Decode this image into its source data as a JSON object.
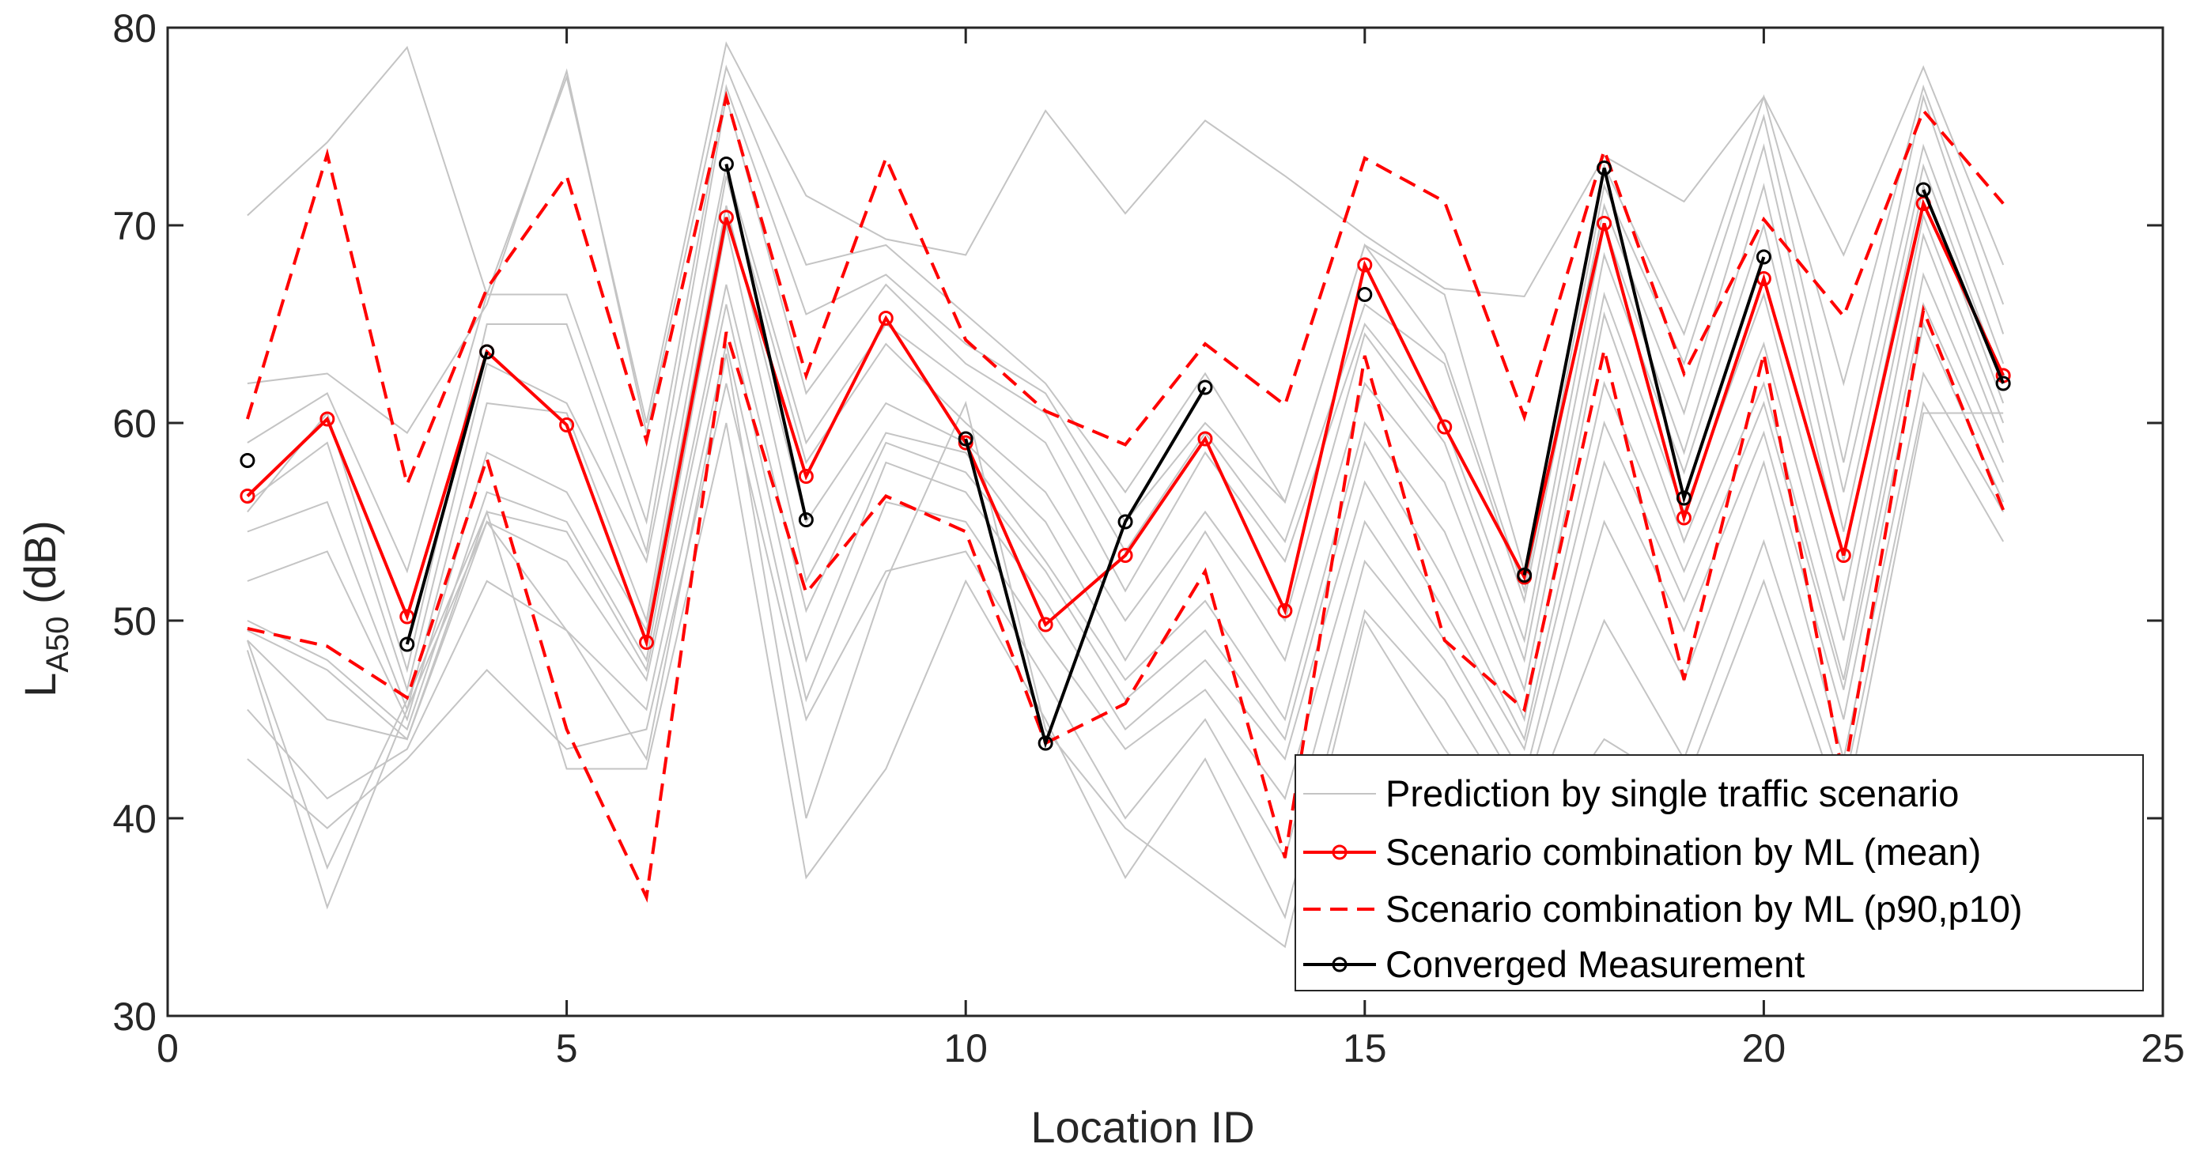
{
  "chart_data": {
    "type": "line",
    "xlabel": "Location ID",
    "ylabel_main": "L",
    "ylabel_sub": "A50",
    "ylabel_unit": " (dB)",
    "xlim": [
      0,
      25
    ],
    "ylim": [
      30,
      80
    ],
    "xticks": [
      0,
      5,
      10,
      15,
      20,
      25
    ],
    "yticks": [
      30,
      40,
      50,
      60,
      70,
      80
    ],
    "grid": false,
    "legend_position": "bottom-right",
    "colors": {
      "gray": "#c4c4c4",
      "red": "#ff0000",
      "black": "#000000",
      "axis": "#262626"
    },
    "x": [
      1,
      2,
      3,
      4,
      5,
      6,
      7,
      8,
      9,
      10,
      11,
      12,
      13,
      14,
      15,
      16,
      17,
      18,
      19,
      20,
      21,
      22,
      23
    ],
    "gray_series": [
      [
        70.5,
        74.2,
        79.0,
        66.5,
        77.5,
        60.0,
        79.2,
        71.5,
        69.3,
        68.5,
        75.8,
        70.6,
        75.3,
        72.5,
        69.5,
        66.8,
        66.4,
        73.5,
        71.2,
        76.5,
        68.5,
        78.0,
        68.0
      ],
      [
        62.0,
        62.5,
        59.5,
        66.0,
        77.8,
        59.5,
        78.0,
        68.0,
        69.0,
        65.5,
        62.0,
        56.5,
        62.5,
        56.0,
        69.0,
        66.5,
        52.5,
        73.0,
        64.5,
        76.5,
        62.0,
        77.0,
        66.0
      ],
      [
        59.0,
        61.5,
        52.5,
        66.5,
        66.5,
        55.0,
        77.0,
        65.5,
        67.5,
        64.0,
        61.5,
        55.0,
        60.0,
        56.0,
        69.0,
        63.5,
        51.5,
        72.0,
        63.0,
        75.5,
        58.0,
        76.5,
        64.5
      ],
      [
        55.5,
        60.5,
        47.5,
        65.0,
        65.0,
        53.5,
        76.5,
        61.5,
        67.0,
        63.0,
        60.5,
        53.5,
        59.5,
        54.0,
        66.0,
        63.0,
        51.0,
        71.0,
        60.5,
        74.0,
        56.5,
        74.0,
        63.0
      ],
      [
        56.0,
        59.0,
        46.5,
        63.0,
        61.0,
        53.0,
        73.0,
        59.0,
        65.0,
        62.0,
        59.0,
        51.5,
        58.5,
        53.0,
        65.0,
        60.0,
        49.0,
        70.0,
        58.5,
        72.0,
        54.5,
        73.0,
        62.0
      ],
      [
        54.5,
        56.0,
        45.5,
        61.0,
        60.5,
        50.0,
        72.5,
        58.0,
        64.0,
        60.0,
        56.5,
        50.0,
        55.5,
        50.0,
        64.5,
        59.0,
        48.0,
        68.5,
        57.5,
        70.0,
        53.0,
        72.0,
        61.0
      ],
      [
        52.0,
        53.5,
        45.0,
        58.5,
        56.5,
        49.5,
        71.0,
        55.0,
        61.0,
        59.0,
        55.0,
        48.0,
        54.5,
        48.0,
        62.0,
        57.0,
        46.5,
        66.5,
        55.5,
        66.5,
        51.0,
        70.5,
        60.0
      ],
      [
        50.0,
        48.0,
        44.5,
        56.5,
        55.0,
        48.0,
        70.0,
        52.0,
        59.5,
        58.5,
        53.0,
        47.0,
        51.0,
        45.0,
        60.0,
        54.5,
        45.0,
        65.5,
        54.0,
        64.0,
        49.0,
        69.5,
        59.0
      ],
      [
        49.5,
        47.5,
        44.0,
        55.5,
        54.5,
        47.5,
        67.0,
        50.5,
        59.0,
        57.5,
        52.5,
        46.0,
        49.5,
        44.0,
        59.0,
        52.0,
        44.0,
        62.0,
        52.5,
        62.0,
        47.0,
        67.5,
        58.0
      ],
      [
        49.0,
        45.0,
        44.0,
        55.0,
        53.0,
        47.0,
        66.0,
        48.0,
        58.0,
        56.5,
        51.0,
        44.5,
        48.0,
        43.0,
        57.0,
        50.5,
        43.5,
        60.0,
        51.0,
        61.0,
        46.5,
        66.0,
        57.0
      ],
      [
        45.5,
        41.0,
        43.5,
        52.0,
        49.5,
        45.5,
        64.0,
        46.0,
        56.0,
        55.0,
        49.0,
        43.5,
        46.5,
        41.0,
        55.0,
        49.0,
        42.0,
        58.0,
        49.5,
        59.5,
        45.0,
        65.0,
        56.0
      ],
      [
        43.0,
        39.5,
        43.0,
        47.5,
        43.5,
        44.5,
        62.0,
        45.0,
        52.5,
        53.5,
        47.0,
        40.0,
        45.0,
        38.0,
        53.0,
        48.0,
        41.0,
        55.0,
        47.0,
        58.0,
        43.0,
        62.5,
        55.5
      ],
      [
        49.0,
        37.5,
        46.0,
        55.5,
        42.5,
        42.5,
        60.0,
        37.0,
        42.5,
        52.0,
        45.0,
        37.0,
        43.0,
        35.0,
        50.5,
        46.0,
        39.5,
        50.0,
        43.0,
        54.0,
        41.5,
        61.0,
        54.0
      ],
      [
        48.5,
        35.5,
        45.5,
        55.0,
        49.5,
        43.0,
        63.5,
        40.0,
        52.0,
        61.0,
        44.5,
        39.5,
        36.5,
        33.5,
        50.0,
        43.5,
        38.0,
        44.0,
        41.5,
        52.0,
        40.0,
        60.5,
        60.5
      ]
    ],
    "series": [
      {
        "name": "Prediction by single traffic scenario",
        "style": "gray"
      },
      {
        "name": "Scenario combination by ML (mean)",
        "style": "red-solid",
        "values": [
          56.3,
          60.2,
          50.2,
          63.6,
          59.9,
          48.9,
          70.4,
          57.3,
          65.3,
          59.0,
          49.8,
          53.3,
          59.2,
          50.5,
          68.0,
          59.8,
          52.2,
          70.1,
          55.2,
          67.3,
          53.3,
          71.1,
          62.4
        ]
      },
      {
        "name": "Scenario combination by ML (p90,p10)",
        "style": "red-dash",
        "upper": [
          60.2,
          73.6,
          56.9,
          66.8,
          72.5,
          59.1,
          76.5,
          62.4,
          73.4,
          64.2,
          60.6,
          58.9,
          64.0,
          60.9,
          73.4,
          71.2,
          60.3,
          73.8,
          62.5,
          70.3,
          65.4,
          75.8,
          71.1
        ],
        "lower": [
          49.6,
          48.7,
          46.1,
          58.2,
          44.5,
          36.0,
          64.6,
          51.4,
          56.3,
          54.5,
          43.8,
          45.8,
          52.5,
          38.0,
          63.4,
          49.0,
          45.5,
          63.7,
          47.0,
          63.5,
          42.0,
          65.7,
          55.6
        ]
      },
      {
        "name": "Converged Measurement",
        "style": "black",
        "values": [
          58.1,
          null,
          48.8,
          63.6,
          null,
          null,
          73.1,
          55.1,
          null,
          59.2,
          43.8,
          55.0,
          61.8,
          null,
          66.5,
          null,
          52.3,
          72.9,
          56.2,
          68.4,
          null,
          71.8,
          62.0
        ]
      }
    ]
  }
}
